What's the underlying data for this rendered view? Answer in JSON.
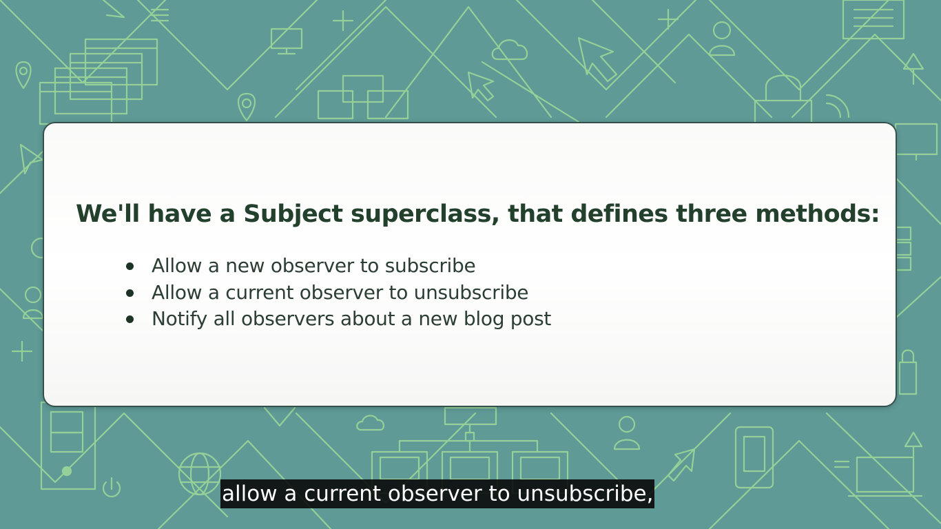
{
  "slide": {
    "title": "We'll have a Subject superclass, that defines three methods:",
    "bullets": [
      "Allow a new observer to subscribe",
      "Allow a current observer to unsubscribe",
      "Notify all observers about a new blog post"
    ]
  },
  "subtitle": "allow a current observer to unsubscribe,",
  "colors": {
    "background": "#5f9a96",
    "line_art": "#a8e29a",
    "title_text": "#22402c",
    "card_border": "#33504a"
  },
  "background_icons": [
    "browser-window-stack-icon",
    "map-pin-icon",
    "monitor-icon",
    "cloud-icon",
    "cursor-arrow-icon",
    "user-icon",
    "plus-icon",
    "document-icon",
    "lock-icon",
    "org-chart-icon",
    "globe-icon",
    "power-icon",
    "phone-icon",
    "server-tower-icon",
    "upload-arrow-icon",
    "laptop-icon"
  ]
}
